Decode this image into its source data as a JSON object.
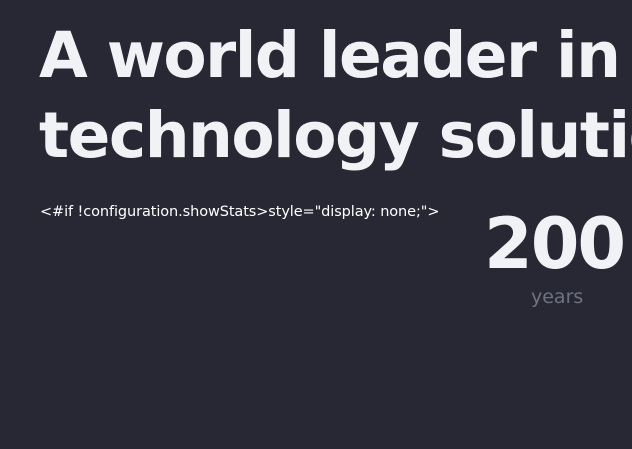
{
  "hero": {
    "headline_line1": "A world leader in su",
    "headline_line2": "technology solutio",
    "template_text": "<#if !configuration.showStats>style=\"display: none;\">",
    "stat": {
      "value": "200",
      "label": "years"
    }
  },
  "colors": {
    "background": "#272833",
    "text_primary": "#f1f2f5",
    "text_muted": "#6f7282"
  }
}
